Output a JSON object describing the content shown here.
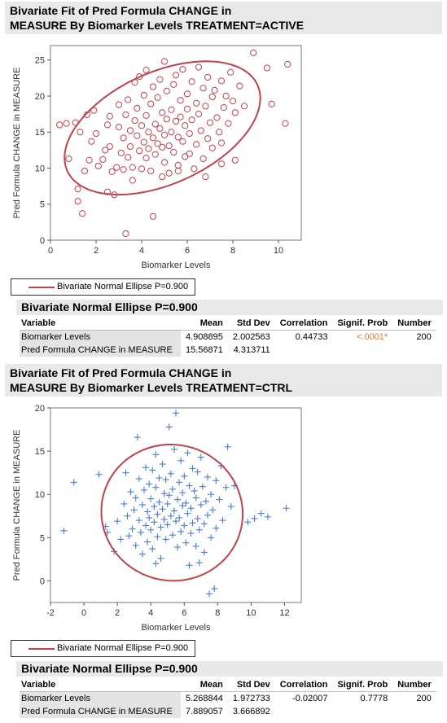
{
  "panels": [
    {
      "title_line1": "Bivariate Fit of Pred Formula CHANGE in",
      "title_line2": "MEASURE By Biomarker Levels TREATMENT=ACTIVE",
      "legend_label": "Bivariate Normal Ellipse P=0.900",
      "ellipse_header": "Bivariate Normal Ellipse P=0.900",
      "columns": [
        "Variable",
        "Mean",
        "Std Dev",
        "Correlation",
        "Signif. Prob",
        "Number"
      ],
      "rows": [
        {
          "variable": "Biomarker Levels",
          "mean": "4.908895",
          "std": "2.002563",
          "corr": "0.44733",
          "signif": "<.0001*",
          "number": "200"
        },
        {
          "variable": "Pred Formula CHANGE in MEASURE",
          "mean": "15.56871",
          "std": "4.313711",
          "corr": "",
          "signif": "",
          "number": ""
        }
      ]
    },
    {
      "title_line1": "Bivariate Fit of Pred Formula CHANGE in",
      "title_line2": "MEASURE By Biomarker Levels TREATMENT=CTRL",
      "legend_label": "Bivariate Normal Ellipse P=0.900",
      "ellipse_header": "Bivariate Normal Ellipse P=0.900",
      "columns": [
        "Variable",
        "Mean",
        "Std Dev",
        "Correlation",
        "Signif. Prob",
        "Number"
      ],
      "rows": [
        {
          "variable": "Biomarker Levels",
          "mean": "5.268844",
          "std": "1.972733",
          "corr": "-0.02007",
          "signif": "0.7778",
          "number": "200"
        },
        {
          "variable": "Pred Formula CHANGE in MEASURE",
          "mean": "7.889057",
          "std": "3.666892",
          "corr": "",
          "signif": "",
          "number": ""
        }
      ]
    }
  ],
  "chart_data": [
    {
      "type": "scatter",
      "marker": "circle",
      "xlabel": "Biomarker Levels",
      "ylabel": "Pred Formula CHANGE in MEASURE",
      "xlim": [
        0,
        11
      ],
      "ylim": [
        0,
        27
      ],
      "xticks": [
        0,
        2,
        4,
        6,
        8,
        10
      ],
      "yticks": [
        0,
        5,
        10,
        15,
        20,
        25
      ],
      "point_color": "#c0424f",
      "ellipse_color": "#c0424f",
      "ellipse": {
        "center": [
          4.91,
          15.57
        ],
        "sx": 2.0,
        "sy": 4.31,
        "corr": 0.447,
        "p": 0.9
      },
      "points": [
        [
          0.4,
          16.0
        ],
        [
          0.7,
          16.2
        ],
        [
          0.8,
          11.3
        ],
        [
          1.2,
          7.1
        ],
        [
          1.2,
          5.4
        ],
        [
          1.4,
          3.7
        ],
        [
          1.1,
          16.3
        ],
        [
          1.3,
          15.0
        ],
        [
          1.5,
          9.6
        ],
        [
          1.6,
          17.4
        ],
        [
          1.7,
          11.1
        ],
        [
          1.8,
          13.7
        ],
        [
          1.9,
          18.0
        ],
        [
          2.0,
          14.8
        ],
        [
          2.1,
          10.3
        ],
        [
          2.3,
          11.2
        ],
        [
          2.4,
          12.5
        ],
        [
          2.5,
          16.0
        ],
        [
          2.6,
          17.2
        ],
        [
          2.6,
          13.0
        ],
        [
          2.7,
          9.5
        ],
        [
          2.8,
          6.3
        ],
        [
          2.9,
          10.1
        ],
        [
          3.0,
          18.8
        ],
        [
          3.0,
          15.7
        ],
        [
          3.1,
          12.1
        ],
        [
          3.2,
          9.8
        ],
        [
          3.2,
          14.2
        ],
        [
          3.3,
          17.4
        ],
        [
          3.4,
          19.5
        ],
        [
          3.4,
          11.5
        ],
        [
          3.5,
          15.2
        ],
        [
          3.5,
          13.0
        ],
        [
          3.6,
          8.3
        ],
        [
          3.6,
          10.1
        ],
        [
          3.7,
          16.6
        ],
        [
          3.7,
          21.9
        ],
        [
          3.8,
          18.3
        ],
        [
          3.8,
          14.5
        ],
        [
          3.9,
          12.4
        ],
        [
          3.9,
          22.7
        ],
        [
          4.0,
          9.9
        ],
        [
          4.0,
          15.9
        ],
        [
          4.1,
          20.1
        ],
        [
          4.1,
          13.6
        ],
        [
          4.2,
          17.3
        ],
        [
          4.2,
          11.4
        ],
        [
          4.2,
          23.6
        ],
        [
          4.3,
          15.0
        ],
        [
          4.3,
          12.7
        ],
        [
          4.4,
          18.9
        ],
        [
          4.4,
          9.6
        ],
        [
          4.5,
          14.2
        ],
        [
          4.5,
          21.3
        ],
        [
          4.5,
          3.3
        ],
        [
          4.6,
          16.1
        ],
        [
          4.6,
          11.9
        ],
        [
          4.7,
          13.4
        ],
        [
          4.7,
          19.8
        ],
        [
          4.8,
          22.3
        ],
        [
          4.8,
          15.5
        ],
        [
          4.9,
          12.9
        ],
        [
          4.9,
          17.7
        ],
        [
          5.0,
          10.8
        ],
        [
          5.0,
          14.6
        ],
        [
          5.0,
          24.8
        ],
        [
          5.1,
          20.7
        ],
        [
          5.1,
          16.8
        ],
        [
          5.2,
          13.1
        ],
        [
          5.2,
          9.3
        ],
        [
          5.3,
          18.1
        ],
        [
          5.3,
          15.0
        ],
        [
          5.4,
          21.6
        ],
        [
          5.4,
          12.2
        ],
        [
          5.5,
          16.5
        ],
        [
          5.5,
          22.9
        ],
        [
          5.6,
          14.3
        ],
        [
          5.6,
          10.4
        ],
        [
          5.7,
          19.4
        ],
        [
          5.7,
          17.1
        ],
        [
          5.8,
          13.7
        ],
        [
          5.8,
          23.7
        ],
        [
          5.9,
          15.9
        ],
        [
          5.9,
          11.6
        ],
        [
          6.0,
          20.3
        ],
        [
          6.0,
          18.2
        ],
        [
          6.1,
          14.8
        ],
        [
          6.1,
          12.0
        ],
        [
          6.2,
          22.0
        ],
        [
          6.2,
          16.7
        ],
        [
          6.3,
          9.9
        ],
        [
          6.4,
          19.0
        ],
        [
          6.4,
          13.3
        ],
        [
          6.5,
          17.5
        ],
        [
          6.5,
          24.0
        ],
        [
          6.6,
          15.2
        ],
        [
          6.7,
          21.1
        ],
        [
          6.7,
          11.3
        ],
        [
          6.8,
          18.6
        ],
        [
          6.9,
          14.1
        ],
        [
          6.9,
          22.6
        ],
        [
          7.0,
          16.3
        ],
        [
          7.1,
          19.9
        ],
        [
          7.1,
          12.8
        ],
        [
          7.2,
          20.8
        ],
        [
          7.3,
          17.0
        ],
        [
          7.4,
          15.0
        ],
        [
          7.5,
          22.1
        ],
        [
          7.5,
          13.5
        ],
        [
          7.6,
          18.4
        ],
        [
          7.7,
          20.0
        ],
        [
          7.8,
          16.2
        ],
        [
          7.9,
          23.3
        ],
        [
          8.0,
          19.3
        ],
        [
          8.1,
          17.7
        ],
        [
          8.1,
          11.1
        ],
        [
          8.3,
          21.4
        ],
        [
          8.5,
          18.6
        ],
        [
          8.9,
          26.0
        ],
        [
          9.5,
          23.9
        ],
        [
          9.7,
          18.9
        ],
        [
          10.3,
          16.2
        ],
        [
          10.4,
          24.4
        ],
        [
          3.3,
          0.9
        ],
        [
          2.5,
          6.7
        ],
        [
          4.9,
          8.8
        ],
        [
          5.6,
          9.6
        ],
        [
          6.8,
          8.8
        ],
        [
          7.5,
          10.6
        ]
      ]
    },
    {
      "type": "scatter",
      "marker": "plus",
      "xlabel": "Biomarker Levels",
      "ylabel": "Pred Formula CHANGE in MEASURE",
      "xlim": [
        -2,
        13
      ],
      "ylim": [
        -2.5,
        20
      ],
      "xticks": [
        -2,
        0,
        2,
        4,
        6,
        8,
        10,
        12
      ],
      "yticks": [
        0,
        5,
        10,
        15,
        20
      ],
      "point_color": "#4a7bcd",
      "ellipse_color": "#c0424f",
      "ellipse": {
        "center": [
          5.27,
          7.89
        ],
        "sx": 1.97,
        "sy": 3.67,
        "corr": -0.02,
        "p": 0.9
      },
      "points": [
        [
          -1.2,
          5.8
        ],
        [
          -0.6,
          11.4
        ],
        [
          0.9,
          12.3
        ],
        [
          1.3,
          6.3
        ],
        [
          1.4,
          5.6
        ],
        [
          1.8,
          3.4
        ],
        [
          2.0,
          6.9
        ],
        [
          2.2,
          4.8
        ],
        [
          2.4,
          8.9
        ],
        [
          2.5,
          12.5
        ],
        [
          2.6,
          7.5
        ],
        [
          2.7,
          5.2
        ],
        [
          2.8,
          10.3
        ],
        [
          2.9,
          6.0
        ],
        [
          3.0,
          8.2
        ],
        [
          3.1,
          4.1
        ],
        [
          3.1,
          9.6
        ],
        [
          3.2,
          16.6
        ],
        [
          3.3,
          7.0
        ],
        [
          3.3,
          11.8
        ],
        [
          3.4,
          5.6
        ],
        [
          3.5,
          8.8
        ],
        [
          3.5,
          3.1
        ],
        [
          3.6,
          10.5
        ],
        [
          3.7,
          6.4
        ],
        [
          3.7,
          13.1
        ],
        [
          3.8,
          8.0
        ],
        [
          3.8,
          4.5
        ],
        [
          3.9,
          11.2
        ],
        [
          3.9,
          7.3
        ],
        [
          4.0,
          9.5
        ],
        [
          4.0,
          5.9
        ],
        [
          4.1,
          12.8
        ],
        [
          4.1,
          3.7
        ],
        [
          4.2,
          8.6
        ],
        [
          4.2,
          6.8
        ],
        [
          4.3,
          10.8
        ],
        [
          4.3,
          14.6
        ],
        [
          4.4,
          7.7
        ],
        [
          4.4,
          5.1
        ],
        [
          4.5,
          9.1
        ],
        [
          4.5,
          11.9
        ],
        [
          4.6,
          6.2
        ],
        [
          4.6,
          2.6
        ],
        [
          4.7,
          8.3
        ],
        [
          4.7,
          13.5
        ],
        [
          4.8,
          7.1
        ],
        [
          4.8,
          10.1
        ],
        [
          4.9,
          4.8
        ],
        [
          4.9,
          11.7
        ],
        [
          5.0,
          8.9
        ],
        [
          5.0,
          6.5
        ],
        [
          5.1,
          17.8
        ],
        [
          5.1,
          9.9
        ],
        [
          5.2,
          7.5
        ],
        [
          5.2,
          12.4
        ],
        [
          5.3,
          5.3
        ],
        [
          5.3,
          10.6
        ],
        [
          5.4,
          8.1
        ],
        [
          5.4,
          15.2
        ],
        [
          5.5,
          6.9
        ],
        [
          5.5,
          19.4
        ],
        [
          5.6,
          9.4
        ],
        [
          5.6,
          3.9
        ],
        [
          5.7,
          11.4
        ],
        [
          5.7,
          7.3
        ],
        [
          5.8,
          13.9
        ],
        [
          5.8,
          5.7
        ],
        [
          5.9,
          8.7
        ],
        [
          5.9,
          10.2
        ],
        [
          6.0,
          6.4
        ],
        [
          6.0,
          12.1
        ],
        [
          6.1,
          4.4
        ],
        [
          6.1,
          9.0
        ],
        [
          6.2,
          14.8
        ],
        [
          6.2,
          7.8
        ],
        [
          6.3,
          11.0
        ],
        [
          6.4,
          5.5
        ],
        [
          6.4,
          8.4
        ],
        [
          6.5,
          13.0
        ],
        [
          6.5,
          6.7
        ],
        [
          6.6,
          10.4
        ],
        [
          6.7,
          4.0
        ],
        [
          6.7,
          9.6
        ],
        [
          6.8,
          7.2
        ],
        [
          6.8,
          12.6
        ],
        [
          6.9,
          5.9
        ],
        [
          7.0,
          8.8
        ],
        [
          7.0,
          14.3
        ],
        [
          7.1,
          10.9
        ],
        [
          7.2,
          6.6
        ],
        [
          7.2,
          3.3
        ],
        [
          7.3,
          9.2
        ],
        [
          7.4,
          12.0
        ],
        [
          7.4,
          7.6
        ],
        [
          7.5,
          -1.5
        ],
        [
          7.6,
          5.0
        ],
        [
          7.6,
          10.0
        ],
        [
          7.7,
          8.2
        ],
        [
          7.8,
          -0.9
        ],
        [
          7.9,
          11.6
        ],
        [
          7.9,
          6.1
        ],
        [
          8.1,
          9.4
        ],
        [
          8.2,
          13.3
        ],
        [
          8.3,
          7.0
        ],
        [
          8.5,
          10.8
        ],
        [
          8.6,
          15.5
        ],
        [
          8.8,
          8.6
        ],
        [
          9.0,
          11.0
        ],
        [
          9.8,
          6.8
        ],
        [
          10.2,
          7.2
        ],
        [
          10.6,
          7.8
        ],
        [
          11.0,
          7.4
        ],
        [
          12.1,
          8.4
        ],
        [
          6.3,
          1.8
        ],
        [
          6.9,
          2.1
        ],
        [
          4.3,
          2.0
        ]
      ]
    }
  ]
}
